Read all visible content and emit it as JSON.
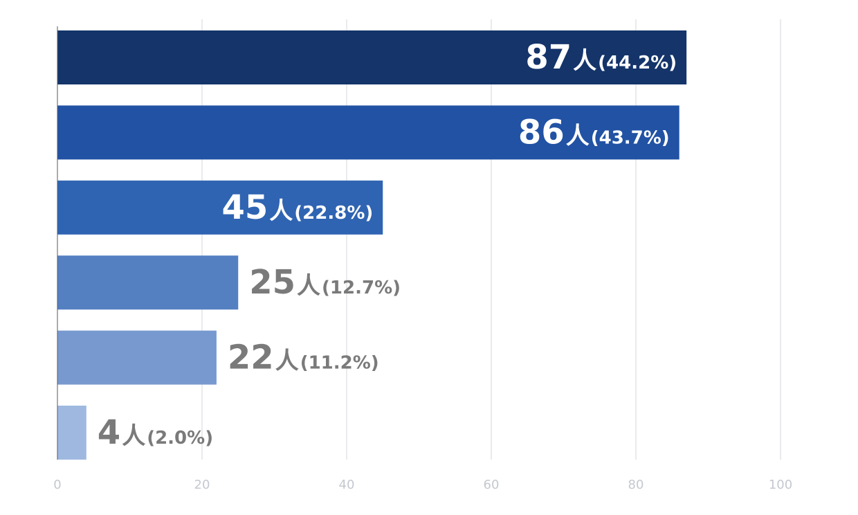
{
  "chart_data": {
    "type": "bar",
    "orientation": "horizontal",
    "values": [
      87,
      86,
      45,
      25,
      22,
      4
    ],
    "value_labels": [
      {
        "number": "87",
        "unit": "人",
        "percent": "(44.2%)"
      },
      {
        "number": "86",
        "unit": "人",
        "percent": "(43.7%)"
      },
      {
        "number": "45",
        "unit": "人",
        "percent": "(22.8%)"
      },
      {
        "number": "25",
        "unit": "人",
        "percent": "(12.7%)"
      },
      {
        "number": "22",
        "unit": "人",
        "percent": "(11.2%)"
      },
      {
        "number": "4",
        "unit": "人",
        "percent": "(2.0%)"
      }
    ],
    "bar_colors": [
      "#14346a",
      "#2152a4",
      "#2f64b2",
      "#5480c2",
      "#7799cf",
      "#9fb8e0"
    ],
    "label_colors": {
      "inside": "#ffffff",
      "outside": "#7a7a7a"
    },
    "xlim": [
      0,
      100
    ],
    "x_ticks": [
      "0",
      "20",
      "40",
      "60",
      "80",
      "100"
    ],
    "grid": true,
    "grid_color": "#e2e4e8",
    "title": "",
    "xlabel": "",
    "ylabel": ""
  }
}
